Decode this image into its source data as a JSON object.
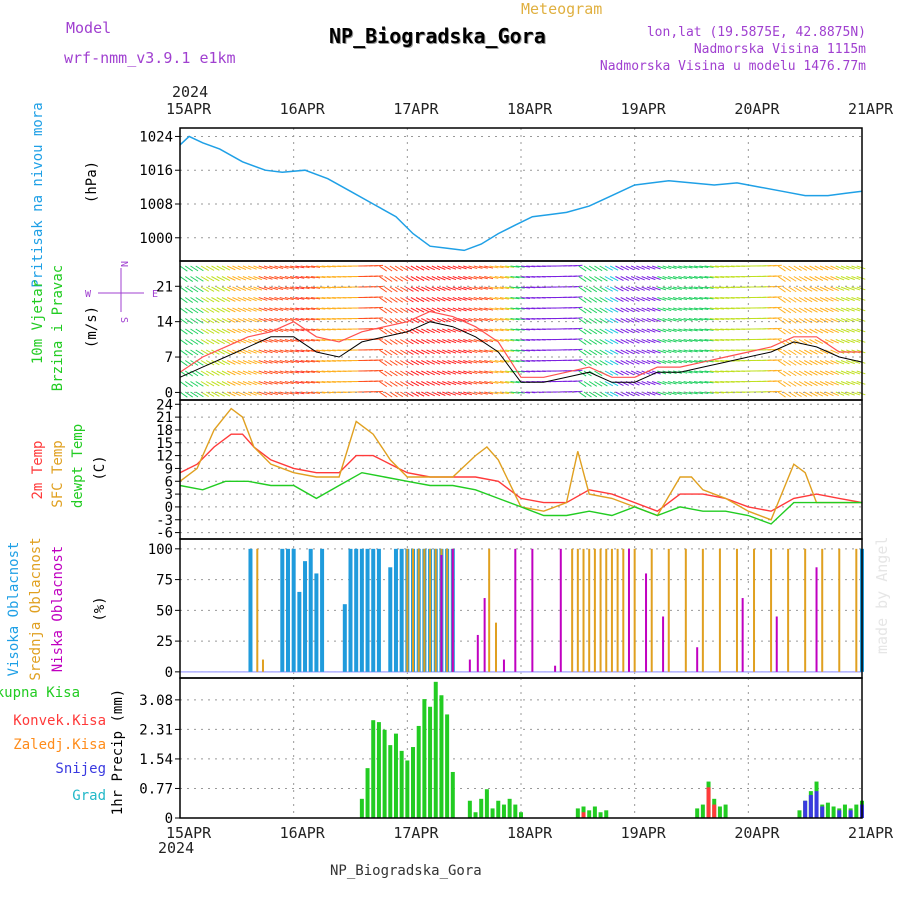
{
  "header": {
    "model_label": "Model",
    "model_name": "wrf-nmm_v3.9.1 e1km",
    "meteogram_label": "Meteogram",
    "station_name": "NP_Biogradska_Gora",
    "lonlat": "lon,lat (19.5875E, 42.8875N)",
    "altitude": "Nadmorska Visina 1115m",
    "model_altitude": "Nadmorska Visina u modelu 1476.77m",
    "footer": "NP_Biogradska_Gora",
    "watermark": "made by Angel"
  },
  "colors": {
    "pressure": "#1fa0e6",
    "wind_speed": "#ff5050",
    "wind_speed_mean": "#000000",
    "temp_2m": "#ff3a3a",
    "temp_sfc": "#e0a020",
    "temp_dewpt": "#22cc22",
    "cloud_high": "#1f9bdc",
    "cloud_mid": "#e0a020",
    "cloud_low": "#c000c0",
    "precip_total": "#22cc22",
    "precip_conv": "#ff3a3a",
    "precip_frz": "#ff8c1a",
    "precip_snow": "#3a3ae0",
    "precip_grad": "#22b8c8",
    "purple_text": "#a040d0",
    "grid": "#999999"
  },
  "time_axis": {
    "year": "2024",
    "ticks": [
      "15APR",
      "16APR",
      "17APR",
      "18APR",
      "19APR",
      "20APR",
      "21APR"
    ]
  },
  "compass": {
    "n": "N",
    "s": "S",
    "e": "E",
    "w": "W"
  },
  "chart_data": [
    {
      "type": "line",
      "name": "pressure",
      "title": "Pritisak na nivou mora",
      "ylabel": "(hPa)",
      "yticks": [
        1000,
        1008,
        1016,
        1024
      ],
      "ylim": [
        994.5,
        1026
      ],
      "x_unit": "days since 15APR 00Z",
      "series": [
        {
          "color_key": "pressure",
          "x": [
            0,
            0.08,
            0.2,
            0.35,
            0.55,
            0.75,
            0.9,
            1.1,
            1.3,
            1.5,
            1.7,
            1.9,
            2.05,
            2.2,
            2.35,
            2.5,
            2.65,
            2.8,
            2.95,
            3.1,
            3.25,
            3.4,
            3.6,
            3.8,
            4.0,
            4.15,
            4.3,
            4.5,
            4.7,
            4.9,
            5.1,
            5.3,
            5.5,
            5.7,
            5.85,
            6.0
          ],
          "y": [
            1022,
            1024,
            1022.5,
            1021,
            1018,
            1016,
            1015.5,
            1016,
            1014,
            1011,
            1008,
            1005,
            1001,
            998,
            997.5,
            997,
            998.5,
            1001,
            1003,
            1005,
            1005.5,
            1006,
            1007.5,
            1010,
            1012.5,
            1013,
            1013.5,
            1013,
            1012.5,
            1013,
            1012,
            1011,
            1010,
            1010,
            1010.5,
            1011
          ]
        }
      ]
    },
    {
      "type": "line",
      "name": "wind",
      "title": "10m Vjetar Brzina i Pravac",
      "ylabel": "(m/s)",
      "yticks": [
        0,
        7,
        14,
        21
      ],
      "ylim": [
        -1.5,
        26
      ],
      "series": [
        {
          "name": "wind_speed",
          "color_key": "wind_speed",
          "x": [
            0,
            0.2,
            0.4,
            0.6,
            0.8,
            1.0,
            1.2,
            1.4,
            1.6,
            1.8,
            2.0,
            2.2,
            2.4,
            2.6,
            2.8,
            3.0,
            3.2,
            3.4,
            3.6,
            3.8,
            4.0,
            4.2,
            4.4,
            4.6,
            4.8,
            5.0,
            5.2,
            5.4,
            5.6,
            5.8,
            6.0
          ],
          "y": [
            4,
            7,
            9,
            11,
            12,
            14,
            11,
            10,
            12,
            13,
            14,
            16,
            15,
            13,
            10,
            3,
            3,
            4,
            5,
            3,
            3,
            5,
            5,
            6,
            7,
            8,
            9,
            11,
            11,
            8,
            8
          ]
        },
        {
          "name": "wind_speed_mean",
          "color_key": "wind_speed_mean",
          "x": [
            0,
            0.2,
            0.4,
            0.6,
            0.8,
            1.0,
            1.2,
            1.4,
            1.6,
            1.8,
            2.0,
            2.2,
            2.4,
            2.6,
            2.8,
            3.0,
            3.2,
            3.4,
            3.6,
            3.8,
            4.0,
            4.2,
            4.4,
            4.6,
            4.8,
            5.0,
            5.2,
            5.4,
            5.6,
            5.8,
            6.0
          ],
          "y": [
            3,
            5,
            7,
            9,
            11,
            11,
            8,
            7,
            10,
            11,
            12,
            14,
            13,
            11,
            8,
            2,
            2,
            3,
            4,
            2,
            2,
            4,
            4,
            5,
            6,
            7,
            8,
            10,
            9,
            7,
            6
          ]
        }
      ]
    },
    {
      "type": "line",
      "name": "temperature",
      "title": "2m Temp / SFC Temp / dewpt Temp",
      "ylabel": "(C)",
      "yticks": [
        -6,
        -3,
        0,
        3,
        6,
        9,
        12,
        15,
        18,
        21,
        24
      ],
      "ylim": [
        -7.5,
        25
      ],
      "series": [
        {
          "name": "2m Temp",
          "color_key": "temp_2m",
          "x": [
            0,
            0.15,
            0.3,
            0.45,
            0.55,
            0.65,
            0.8,
            1.0,
            1.2,
            1.4,
            1.55,
            1.7,
            1.85,
            2.0,
            2.2,
            2.4,
            2.6,
            2.8,
            3.0,
            3.2,
            3.4,
            3.6,
            3.8,
            4.0,
            4.2,
            4.4,
            4.6,
            4.8,
            5.0,
            5.2,
            5.4,
            5.6,
            5.8,
            6.0
          ],
          "y": [
            8,
            10,
            14,
            17,
            17,
            14,
            11,
            9,
            8,
            8,
            12,
            12,
            10,
            8,
            7,
            7,
            7,
            6,
            2,
            1,
            1,
            4,
            3,
            1,
            -1,
            3,
            3,
            2,
            0,
            -1,
            2,
            3,
            2,
            1
          ]
        },
        {
          "name": "SFC Temp",
          "color_key": "temp_sfc",
          "x": [
            0,
            0.15,
            0.3,
            0.45,
            0.55,
            0.65,
            0.8,
            1.0,
            1.2,
            1.4,
            1.55,
            1.7,
            1.85,
            2.0,
            2.2,
            2.4,
            2.6,
            2.7,
            2.8,
            3.0,
            3.2,
            3.4,
            3.5,
            3.6,
            3.8,
            4.0,
            4.2,
            4.4,
            4.5,
            4.6,
            4.8,
            5.0,
            5.2,
            5.4,
            5.5,
            5.6,
            5.8,
            6.0
          ],
          "y": [
            6,
            9,
            18,
            23,
            21,
            14,
            10,
            8,
            7,
            7,
            20,
            17,
            11,
            7,
            7,
            7,
            12,
            14,
            11,
            0,
            -1,
            1,
            13,
            3,
            2,
            0,
            -2,
            7,
            7,
            4,
            2,
            -1,
            -3,
            10,
            8,
            1,
            1,
            1
          ]
        },
        {
          "name": "dewpt Temp",
          "color_key": "temp_dewpt",
          "x": [
            0,
            0.2,
            0.4,
            0.6,
            0.8,
            1.0,
            1.2,
            1.4,
            1.6,
            1.8,
            2.0,
            2.2,
            2.4,
            2.6,
            2.8,
            3.0,
            3.2,
            3.4,
            3.6,
            3.8,
            4.0,
            4.2,
            4.4,
            4.6,
            4.8,
            5.0,
            5.2,
            5.4,
            5.6,
            5.8,
            6.0
          ],
          "y": [
            5,
            4,
            6,
            6,
            5,
            5,
            2,
            5,
            8,
            7,
            6,
            5,
            5,
            4,
            2,
            0,
            -2,
            -2,
            -1,
            -2,
            0,
            -2,
            0,
            -1,
            -1,
            -2,
            -4,
            1,
            1,
            1,
            1
          ]
        }
      ]
    },
    {
      "type": "bar",
      "name": "cloud_cover",
      "title": "Visoka / Srednja / Niska Oblacnost",
      "ylabel": "(%)",
      "yticks": [
        0,
        25,
        50,
        75,
        100
      ],
      "ylim": [
        -5,
        108
      ],
      "series": [
        {
          "name": "Visoka Oblacnost",
          "color_key": "cloud_high",
          "x": [
            0.62,
            0.9,
            0.95,
            1.0,
            1.05,
            1.1,
            1.15,
            1.2,
            1.25,
            1.45,
            1.5,
            1.55,
            1.6,
            1.65,
            1.7,
            1.75,
            1.85,
            1.9,
            1.95,
            2.0,
            2.05,
            2.1,
            2.15,
            2.2,
            2.25,
            2.3,
            2.35,
            2.4,
            6.0
          ],
          "y": [
            100,
            100,
            100,
            100,
            65,
            90,
            100,
            80,
            100,
            55,
            100,
            100,
            100,
            100,
            100,
            100,
            85,
            100,
            100,
            100,
            100,
            100,
            100,
            100,
            100,
            100,
            100,
            100,
            100
          ]
        },
        {
          "name": "Srednja Oblacnost",
          "color_key": "cloud_mid",
          "x": [
            0.68,
            0.73,
            2.0,
            2.05,
            2.1,
            2.15,
            2.2,
            2.25,
            2.3,
            2.35,
            2.4,
            2.72,
            2.78,
            3.45,
            3.5,
            3.55,
            3.6,
            3.65,
            3.7,
            3.75,
            3.8,
            3.85,
            3.9,
            4.0,
            4.15,
            4.3,
            4.45,
            4.6,
            4.75,
            4.9,
            5.05,
            5.2,
            5.35,
            5.5,
            5.65,
            5.8,
            5.95
          ],
          "y": [
            100,
            10,
            100,
            100,
            100,
            100,
            100,
            100,
            100,
            100,
            100,
            100,
            40,
            100,
            100,
            100,
            100,
            100,
            100,
            100,
            100,
            100,
            100,
            100,
            100,
            100,
            100,
            100,
            100,
            100,
            100,
            100,
            100,
            100,
            100,
            100,
            100
          ]
        },
        {
          "name": "Niska Oblacnost",
          "color_key": "cloud_low",
          "x": [
            2.3,
            2.4,
            2.55,
            2.62,
            2.68,
            2.85,
            2.95,
            3.1,
            3.3,
            3.35,
            3.95,
            4.1,
            4.25,
            4.55,
            4.95,
            5.25,
            5.6
          ],
          "y": [
            95,
            100,
            10,
            30,
            60,
            10,
            100,
            100,
            5,
            100,
            100,
            80,
            45,
            20,
            60,
            45,
            85
          ]
        }
      ]
    },
    {
      "type": "bar",
      "name": "precipitation",
      "title": "1hr Precip",
      "ylabel": "1hr Precip (mm)",
      "yticks": [
        0,
        0.77,
        1.54,
        2.31,
        3.08
      ],
      "ylim": [
        0,
        3.65
      ],
      "legend": [
        "Ukupna Kisa",
        "Konvek.Kisa",
        "Zaledj.Kisa",
        "Snijeg",
        "Grad"
      ],
      "series": [
        {
          "name": "Ukupna Kisa",
          "color_key": "precip_total",
          "x": [
            1.6,
            1.65,
            1.7,
            1.75,
            1.8,
            1.85,
            1.9,
            1.95,
            2.0,
            2.05,
            2.1,
            2.15,
            2.2,
            2.25,
            2.3,
            2.35,
            2.4,
            2.55,
            2.6,
            2.65,
            2.7,
            2.75,
            2.8,
            2.85,
            2.9,
            2.95,
            3.0,
            3.5,
            3.55,
            3.6,
            3.65,
            3.7,
            3.75,
            4.55,
            4.6,
            4.65,
            4.7,
            4.75,
            4.8,
            5.45,
            5.5,
            5.55,
            5.6,
            5.65,
            5.7,
            5.75,
            5.8,
            5.85,
            5.9,
            5.95,
            6.0
          ],
          "y": [
            0.5,
            1.3,
            2.55,
            2.5,
            2.3,
            1.9,
            2.2,
            1.75,
            1.5,
            1.85,
            2.4,
            3.1,
            2.9,
            3.55,
            3.2,
            2.7,
            1.2,
            0.45,
            0.15,
            0.5,
            0.75,
            0.25,
            0.45,
            0.35,
            0.5,
            0.35,
            0.15,
            0.25,
            0.3,
            0.2,
            0.3,
            0.15,
            0.2,
            0.25,
            0.35,
            0.95,
            0.5,
            0.3,
            0.35,
            0.2,
            0.45,
            0.7,
            0.95,
            0.35,
            0.4,
            0.3,
            0.25,
            0.35,
            0.25,
            0.35,
            0.45
          ]
        },
        {
          "name": "Konvek.Kisa",
          "color_key": "precip_conv",
          "x": [
            3.55,
            4.65,
            4.7
          ],
          "y": [
            0.15,
            0.8,
            0.35
          ]
        },
        {
          "name": "Snijeg",
          "color_key": "precip_snow",
          "x": [
            5.5,
            5.55,
            5.6,
            5.65,
            5.8,
            5.9,
            6.0
          ],
          "y": [
            0.45,
            0.6,
            0.7,
            0.3,
            0.2,
            0.2,
            0.35
          ]
        }
      ]
    }
  ]
}
